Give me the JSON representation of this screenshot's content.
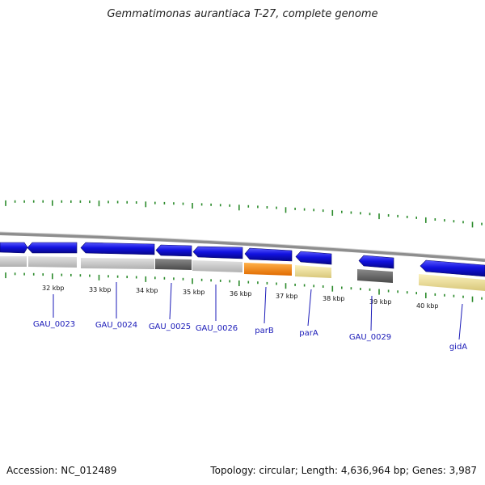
{
  "title": "Gemmatimonas aurantiaca T-27, complete genome",
  "footer": {
    "accession": "Accession: NC_012489",
    "topology": "Topology: circular; Length: 4,636,964 bp; Genes: 3,987"
  },
  "colors": {
    "cds_forward": "#0b0bd6",
    "ruler_tick": "#2a8a2a",
    "backbone": "#8e8e8e",
    "label": "#1a1ab8"
  },
  "kbp_labels": [
    "32 kbp",
    "33 kbp",
    "34 kbp",
    "35 kbp",
    "36 kbp",
    "37 kbp",
    "38 kbp",
    "39 kbp",
    "40 kbp"
  ],
  "gene_labels": [
    "GAU_0023",
    "GAU_0024",
    "GAU_0025",
    "GAU_0026",
    "parB",
    "parA",
    "GAU_0029",
    "gidA"
  ]
}
